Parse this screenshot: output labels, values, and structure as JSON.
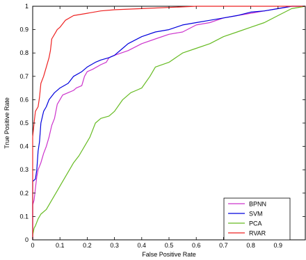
{
  "chart_data": {
    "type": "line",
    "title": "",
    "xlabel": "False Positive Rate",
    "ylabel": "True Positive Rate",
    "xlim": [
      0,
      1
    ],
    "ylim": [
      0,
      1
    ],
    "xticks": [
      0,
      0.1,
      0.2,
      0.3,
      0.4,
      0.5,
      0.6,
      0.7,
      0.8,
      0.9
    ],
    "xtick_labels": [
      "0",
      "0.1",
      "0.2",
      "0.3",
      "0.4",
      "0.5",
      "0.6",
      "0.7",
      "0.8",
      "0.9"
    ],
    "yticks": [
      0,
      0.1,
      0.2,
      0.3,
      0.4,
      0.5,
      0.6,
      0.7,
      0.8,
      0.9,
      1
    ],
    "ytick_labels": [
      "0",
      "0.1",
      "0.2",
      "0.3",
      "0.4",
      "0.5",
      "0.6",
      "0.7",
      "0.8",
      "0.9",
      "1"
    ],
    "grid": false,
    "legend_position": "bottom-right",
    "series": [
      {
        "name": "BPNN",
        "color": "#cc33cc",
        "points": [
          [
            0,
            0
          ],
          [
            0,
            0.15
          ],
          [
            0.005,
            0.17
          ],
          [
            0.01,
            0.22
          ],
          [
            0.015,
            0.27
          ],
          [
            0.02,
            0.3
          ],
          [
            0.03,
            0.33
          ],
          [
            0.04,
            0.37
          ],
          [
            0.05,
            0.4
          ],
          [
            0.06,
            0.44
          ],
          [
            0.07,
            0.49
          ],
          [
            0.08,
            0.52
          ],
          [
            0.09,
            0.58
          ],
          [
            0.1,
            0.6
          ],
          [
            0.11,
            0.62
          ],
          [
            0.13,
            0.63
          ],
          [
            0.15,
            0.64
          ],
          [
            0.16,
            0.65
          ],
          [
            0.18,
            0.66
          ],
          [
            0.19,
            0.7
          ],
          [
            0.2,
            0.72
          ],
          [
            0.22,
            0.73
          ],
          [
            0.25,
            0.75
          ],
          [
            0.27,
            0.76
          ],
          [
            0.28,
            0.78
          ],
          [
            0.3,
            0.79
          ],
          [
            0.35,
            0.81
          ],
          [
            0.4,
            0.84
          ],
          [
            0.45,
            0.86
          ],
          [
            0.5,
            0.88
          ],
          [
            0.55,
            0.89
          ],
          [
            0.6,
            0.92
          ],
          [
            0.65,
            0.93
          ],
          [
            0.7,
            0.95
          ],
          [
            0.75,
            0.96
          ],
          [
            0.8,
            0.97
          ],
          [
            0.85,
            0.98
          ],
          [
            0.9,
            0.99
          ],
          [
            0.95,
            1.0
          ],
          [
            1,
            1
          ]
        ]
      },
      {
        "name": "SVM",
        "color": "#0000dd",
        "points": [
          [
            0,
            0
          ],
          [
            0,
            0.25
          ],
          [
            0.01,
            0.26
          ],
          [
            0.015,
            0.3
          ],
          [
            0.02,
            0.38
          ],
          [
            0.025,
            0.42
          ],
          [
            0.03,
            0.5
          ],
          [
            0.04,
            0.55
          ],
          [
            0.05,
            0.57
          ],
          [
            0.06,
            0.6
          ],
          [
            0.08,
            0.63
          ],
          [
            0.1,
            0.65
          ],
          [
            0.13,
            0.67
          ],
          [
            0.15,
            0.7
          ],
          [
            0.18,
            0.72
          ],
          [
            0.2,
            0.74
          ],
          [
            0.23,
            0.76
          ],
          [
            0.25,
            0.77
          ],
          [
            0.28,
            0.78
          ],
          [
            0.3,
            0.79
          ],
          [
            0.33,
            0.82
          ],
          [
            0.35,
            0.84
          ],
          [
            0.4,
            0.87
          ],
          [
            0.45,
            0.89
          ],
          [
            0.5,
            0.9
          ],
          [
            0.55,
            0.92
          ],
          [
            0.6,
            0.93
          ],
          [
            0.65,
            0.94
          ],
          [
            0.7,
            0.95
          ],
          [
            0.75,
            0.96
          ],
          [
            0.8,
            0.975
          ],
          [
            0.85,
            0.98
          ],
          [
            0.9,
            0.99
          ],
          [
            0.95,
            1.0
          ],
          [
            1,
            1
          ]
        ]
      },
      {
        "name": "PCA",
        "color": "#66bb22",
        "points": [
          [
            0,
            0
          ],
          [
            0,
            0.02
          ],
          [
            0.005,
            0.05
          ],
          [
            0.01,
            0.06
          ],
          [
            0.02,
            0.09
          ],
          [
            0.03,
            0.11
          ],
          [
            0.05,
            0.13
          ],
          [
            0.07,
            0.17
          ],
          [
            0.09,
            0.21
          ],
          [
            0.1,
            0.23
          ],
          [
            0.12,
            0.27
          ],
          [
            0.14,
            0.31
          ],
          [
            0.15,
            0.33
          ],
          [
            0.17,
            0.36
          ],
          [
            0.19,
            0.4
          ],
          [
            0.21,
            0.44
          ],
          [
            0.23,
            0.5
          ],
          [
            0.25,
            0.52
          ],
          [
            0.28,
            0.53
          ],
          [
            0.3,
            0.55
          ],
          [
            0.33,
            0.6
          ],
          [
            0.36,
            0.63
          ],
          [
            0.38,
            0.64
          ],
          [
            0.4,
            0.65
          ],
          [
            0.43,
            0.7
          ],
          [
            0.45,
            0.74
          ],
          [
            0.5,
            0.76
          ],
          [
            0.55,
            0.8
          ],
          [
            0.6,
            0.82
          ],
          [
            0.65,
            0.84
          ],
          [
            0.7,
            0.87
          ],
          [
            0.75,
            0.89
          ],
          [
            0.8,
            0.91
          ],
          [
            0.85,
            0.93
          ],
          [
            0.9,
            0.96
          ],
          [
            0.95,
            0.99
          ],
          [
            1,
            1
          ]
        ]
      },
      {
        "name": "RVAR",
        "color": "#ee2222",
        "points": [
          [
            0,
            0
          ],
          [
            0,
            0.44
          ],
          [
            0.005,
            0.5
          ],
          [
            0.01,
            0.55
          ],
          [
            0.02,
            0.57
          ],
          [
            0.025,
            0.61
          ],
          [
            0.03,
            0.67
          ],
          [
            0.04,
            0.7
          ],
          [
            0.05,
            0.74
          ],
          [
            0.06,
            0.78
          ],
          [
            0.065,
            0.81
          ],
          [
            0.07,
            0.86
          ],
          [
            0.08,
            0.88
          ],
          [
            0.09,
            0.9
          ],
          [
            0.1,
            0.91
          ],
          [
            0.12,
            0.94
          ],
          [
            0.15,
            0.96
          ],
          [
            0.2,
            0.97
          ],
          [
            0.25,
            0.98
          ],
          [
            0.3,
            0.985
          ],
          [
            0.4,
            0.99
          ],
          [
            0.5,
            0.995
          ],
          [
            0.6,
            1.0
          ],
          [
            0.7,
            1.0
          ],
          [
            0.8,
            1.0
          ],
          [
            1,
            1
          ]
        ]
      }
    ]
  }
}
